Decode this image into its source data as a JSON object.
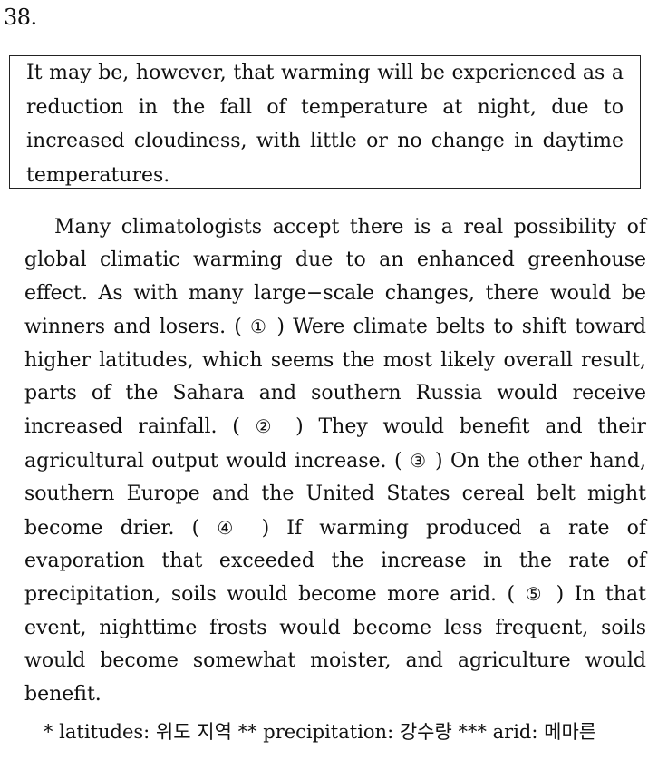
{
  "question_number": "38.",
  "given_sentence": "It may be, however, that warming will be experienced as a reduction in the fall of temperature at night, due to increased cloudiness, with little or no change in daytime temperatures.",
  "passage": {
    "seg0": "Many climatologists accept there is a real possibility of global climatic warming due to an enhanced greenhouse effect. As with many large−scale changes, there would be winners and losers. (",
    "m1": "①",
    "seg1": ") Were climate belts to shift toward higher latitudes, which seems the most likely overall result, parts of the Sahara and southern Russia would receive increased rainfall. (",
    "m2": "②",
    "seg2": ") They would benefit and their agricultural output would increase. (",
    "m3": "③",
    "seg3": ") On the other hand, southern Europe and the United States cereal belt might become drier. (",
    "m4": "④",
    "seg4": ") If warming produced a rate of evaporation that exceeded the increase in the rate of precipitation, soils would become more arid. (",
    "m5": "⑤",
    "seg5": ") In that event, nighttime frosts would become less frequent, soils would become somewhat moister, and agriculture would benefit."
  },
  "footnotes": {
    "f1": "* latitudes: 위도 지역",
    "f2": "** precipitation: 강수량",
    "f3": "*** arid: 메마른"
  }
}
